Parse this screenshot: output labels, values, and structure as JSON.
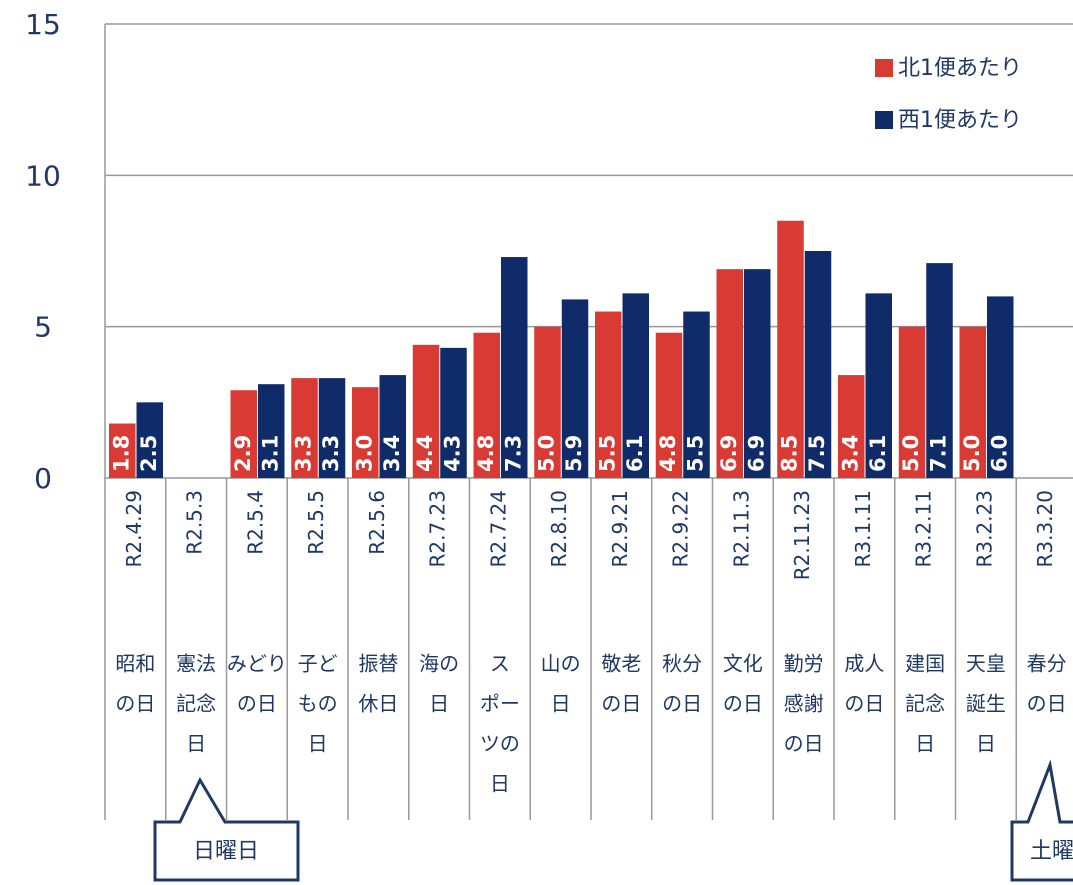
{
  "chart_data": {
    "type": "bar",
    "categories": [
      "R2.4.29",
      "R2.5.3",
      "R2.5.4",
      "R2.5.5",
      "R2.5.6",
      "R2.7.23",
      "R2.7.24",
      "R2.8.10",
      "R2.9.21",
      "R2.9.22",
      "R2.11.3",
      "R2.11.23",
      "R3.1.11",
      "R3.2.11",
      "R3.2.23",
      "R3.3.20"
    ],
    "holidays": [
      [
        "昭和",
        "の日"
      ],
      [
        "憲法",
        "記念",
        "日"
      ],
      [
        "みどり",
        "の日"
      ],
      [
        "子ど",
        "もの",
        "日"
      ],
      [
        "振替",
        "休日"
      ],
      [
        "海の",
        "日"
      ],
      [
        "ス",
        "ポー",
        "ツの",
        "日"
      ],
      [
        "山の",
        "日"
      ],
      [
        "敬老",
        "の日"
      ],
      [
        "秋分",
        "の日"
      ],
      [
        "文化",
        "の日"
      ],
      [
        "勤労",
        "感謝",
        "の日"
      ],
      [
        "成人",
        "の日"
      ],
      [
        "建国",
        "記念",
        "日"
      ],
      [
        "天皇",
        "誕生",
        "日"
      ],
      [
        "春分",
        "の日"
      ]
    ],
    "series": [
      {
        "name": "北1便あたり",
        "color": "#d93a33",
        "values": [
          1.8,
          null,
          2.9,
          3.3,
          3.0,
          4.4,
          4.8,
          5.0,
          5.5,
          4.8,
          6.9,
          8.5,
          3.4,
          5.0,
          5.0,
          null
        ],
        "value_labels": [
          "1.8",
          null,
          "2.9",
          "3.3",
          "3.0",
          "4.4",
          "4.8",
          "5.0",
          "5.5",
          "4.8",
          "6.9",
          "8.5",
          "3.4",
          "5.0",
          "5.0",
          null
        ]
      },
      {
        "name": "西1便あたり",
        "color": "#0f2b69",
        "values": [
          2.5,
          null,
          3.1,
          3.3,
          3.4,
          4.3,
          7.3,
          5.9,
          6.1,
          5.5,
          6.9,
          7.5,
          6.1,
          7.1,
          6.0,
          null
        ],
        "value_labels": [
          "2.5",
          null,
          "3.1",
          "3.3",
          "3.4",
          "4.3",
          "7.3",
          "5.9",
          "6.1",
          "5.5",
          "6.9",
          "7.5",
          "6.1",
          "7.1",
          "6.0",
          null
        ]
      }
    ],
    "ylim": [
      0,
      15
    ],
    "yticks": [
      0,
      5,
      10,
      15
    ],
    "grid": true,
    "legend": "top-right",
    "annotations": [
      "日曜日",
      "土曜"
    ]
  }
}
